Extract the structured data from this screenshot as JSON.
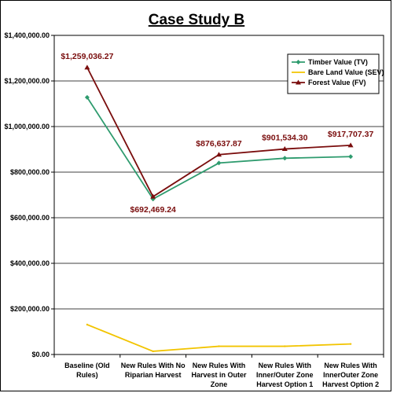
{
  "chart_data": {
    "type": "line",
    "title": "Case Study B",
    "xlabel": "",
    "ylabel": "",
    "categories": [
      [
        "Baseline (Old",
        "Rules)"
      ],
      [
        "New Rules With No",
        "Riparian Harvest"
      ],
      [
        "New Rules With",
        "Harvest in Outer",
        "Zone"
      ],
      [
        "New Rules With",
        "Inner/Outer Zone",
        "Harvest Option 1"
      ],
      [
        "New Rules With",
        "InnerOuter Zone",
        "Harvest Option 2"
      ]
    ],
    "ylim": [
      0,
      1400000
    ],
    "yticks": [
      {
        "value": 0,
        "label": "$0.00"
      },
      {
        "value": 200000,
        "label": "$200,000.00"
      },
      {
        "value": 400000,
        "label": "$400,000.00"
      },
      {
        "value": 600000,
        "label": "$600,000.00"
      },
      {
        "value": 800000,
        "label": "$800,000.00"
      },
      {
        "value": 1000000,
        "label": "$1,000,000.00"
      },
      {
        "value": 1200000,
        "label": "$1,200,000.00"
      },
      {
        "value": 1400000,
        "label": "$1,400,000.00"
      }
    ],
    "grid": true,
    "legend_position": "top-right",
    "series": [
      {
        "name": "Timber Value (TV)",
        "color": "#2e9b6e",
        "marker": "diamond",
        "values": [
          1128000,
          682000,
          840000,
          861000,
          868000
        ],
        "labels": null
      },
      {
        "name": "Bare Land Value (SEV)",
        "color": "#f2c400",
        "marker": "none",
        "values": [
          131000,
          14000,
          36000,
          36000,
          46000
        ],
        "labels": null
      },
      {
        "name": "Forest Value (FV)",
        "color": "#7a0d0d",
        "marker": "triangle",
        "values": [
          1259036.27,
          692469.24,
          876637.87,
          901534.3,
          917707.37
        ],
        "labels": [
          "$1,259,036.27",
          "$692,469.24",
          "$876,637.87",
          "$901,534.30",
          "$917,707.37"
        ]
      }
    ]
  }
}
